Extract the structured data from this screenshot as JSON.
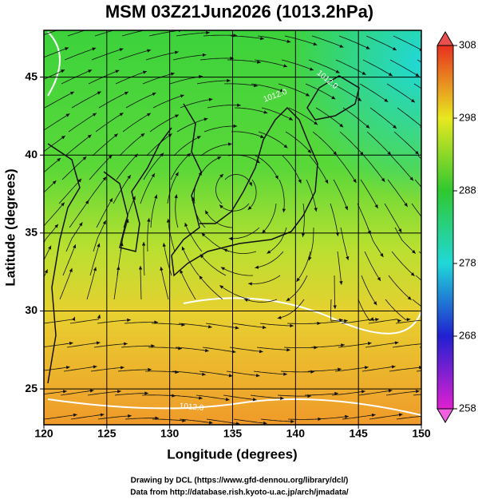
{
  "chart_data": {
    "type": "map",
    "title": "MSM 03Z21Jun2026 (1013.2hPa)",
    "x_label": "Longitude (degrees)",
    "y_label": "Latitude  (degrees)",
    "xlim": [
      120,
      150
    ],
    "ylim": [
      22.7,
      48.0
    ],
    "xticks": [
      120,
      125,
      130,
      135,
      140,
      145,
      150
    ],
    "yticks": [
      25,
      30,
      35,
      40,
      45
    ],
    "grid": true,
    "contour_labels": [
      "1012.0",
      "1012.0",
      "1012.0"
    ],
    "colorbar": {
      "lim": [
        258,
        308
      ],
      "ticks": [
        258,
        268,
        278,
        288,
        298,
        308
      ]
    },
    "credits": [
      "Drawing by DCL (https://www.gfd-dennou.org/library/dcl/)",
      "Data from http://database.rish.kyoto-u.ac.jp/arch/jmadata/"
    ]
  }
}
